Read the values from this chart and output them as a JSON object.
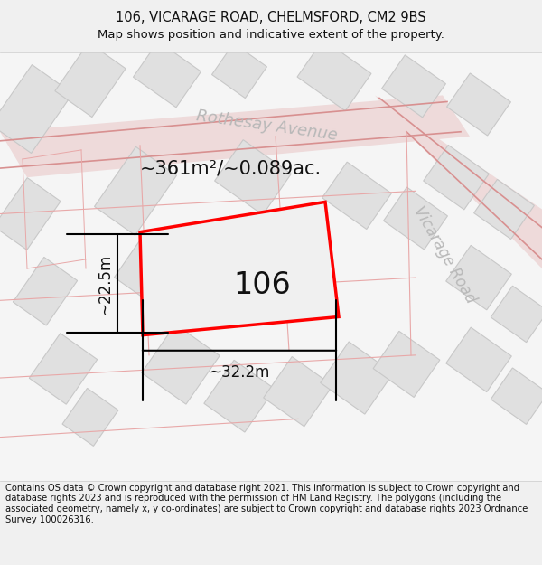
{
  "title_line1": "106, VICARAGE ROAD, CHELMSFORD, CM2 9BS",
  "title_line2": "Map shows position and indicative extent of the property.",
  "footer_text": "Contains OS data © Crown copyright and database right 2021. This information is subject to Crown copyright and database rights 2023 and is reproduced with the permission of HM Land Registry. The polygons (including the associated geometry, namely x, y co-ordinates) are subject to Crown copyright and database rights 2023 Ordnance Survey 100026316.",
  "area_label": "~361m²/~0.089ac.",
  "width_label": "~32.2m",
  "height_label": "~22.5m",
  "number_label": "106",
  "road_label1": "Rothesay Avenue",
  "road_label2": "Vicarage Road",
  "bg_color": "#f0f0f0",
  "map_bg": "#f8f8f8",
  "block_fill": "#e0e0e0",
  "block_edge": "#c8c8c8",
  "road_line_color": "#e8a8a8",
  "road_line_color2": "#d89090",
  "plot_color": "#ff0000",
  "title_fontsize": 10.5,
  "subtitle_fontsize": 9.5,
  "footer_fontsize": 7.2,
  "road_font_color": "#b8b8b8",
  "road_font_size": 13,
  "area_fontsize": 15,
  "number_fontsize": 24
}
